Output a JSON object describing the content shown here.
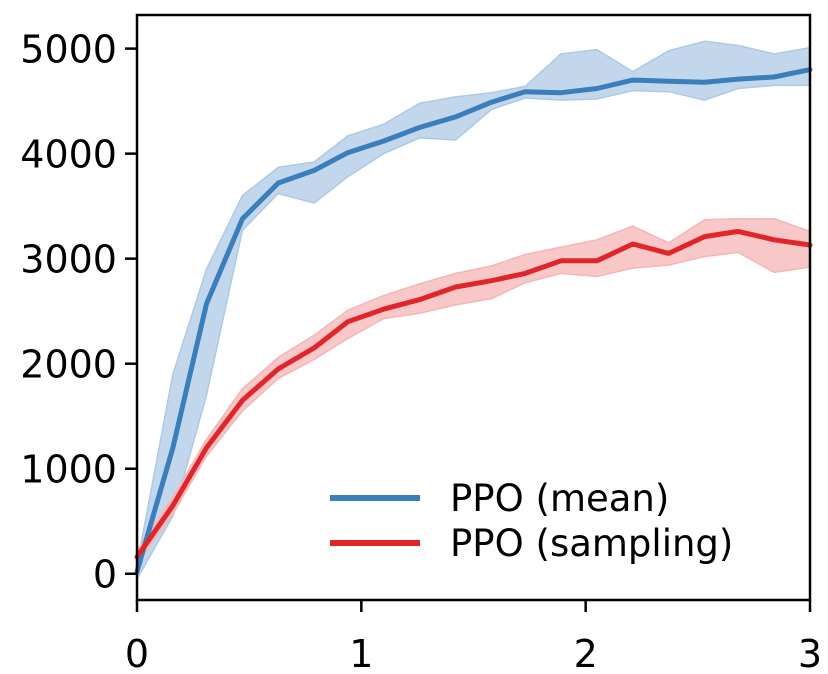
{
  "chart_data": {
    "type": "line",
    "title": "",
    "xlabel": "",
    "ylabel": "",
    "xlim": [
      0,
      3
    ],
    "ylim": [
      -250,
      5320
    ],
    "xticks": [
      0,
      1,
      2,
      3
    ],
    "xtick_labels": [
      "0",
      "1",
      "2",
      "3"
    ],
    "yticks": [
      0,
      1000,
      2000,
      3000,
      4000,
      5000
    ],
    "ytick_labels": [
      "0",
      "1000",
      "2000",
      "3000",
      "4000",
      "5000"
    ],
    "grid": false,
    "legend_position": "bottom-right",
    "x": [
      0,
      0.16,
      0.31,
      0.47,
      0.63,
      0.79,
      0.94,
      1.1,
      1.26,
      1.42,
      1.58,
      1.73,
      1.89,
      2.05,
      2.21,
      2.37,
      2.53,
      2.68,
      2.84,
      3.0
    ],
    "series": [
      {
        "name": "PPO (mean)",
        "color": "#3a7ebc",
        "band_color": "#aec9e6",
        "values": [
          20,
          1200,
          2570,
          3380,
          3720,
          3840,
          4010,
          4120,
          4250,
          4350,
          4490,
          4590,
          4580,
          4620,
          4700,
          4690,
          4680,
          4710,
          4730,
          4800
        ],
        "lower": [
          -50,
          550,
          1700,
          3270,
          3620,
          3530,
          3780,
          4000,
          4150,
          4130,
          4420,
          4530,
          4510,
          4520,
          4600,
          4590,
          4510,
          4620,
          4650,
          4650
        ],
        "upper": [
          80,
          1900,
          2900,
          3600,
          3870,
          3920,
          4170,
          4280,
          4480,
          4540,
          4580,
          4640,
          4950,
          4990,
          4780,
          4980,
          5070,
          5030,
          4950,
          5010
        ]
      },
      {
        "name": "PPO (sampling)",
        "color": "#e0262a",
        "band_color": "#f6b5b6",
        "values": [
          160,
          650,
          1200,
          1650,
          1950,
          2150,
          2400,
          2520,
          2610,
          2730,
          2790,
          2860,
          2980,
          2980,
          3140,
          3050,
          3210,
          3260,
          3180,
          3130
        ],
        "lower": [
          100,
          570,
          1120,
          1550,
          1860,
          2040,
          2240,
          2430,
          2480,
          2560,
          2620,
          2770,
          2860,
          2830,
          2910,
          2940,
          3020,
          3060,
          2870,
          2920
        ],
        "upper": [
          220,
          730,
          1280,
          1760,
          2060,
          2270,
          2510,
          2650,
          2760,
          2860,
          2930,
          3040,
          3110,
          3180,
          3310,
          3150,
          3370,
          3380,
          3380,
          3260
        ]
      }
    ]
  }
}
